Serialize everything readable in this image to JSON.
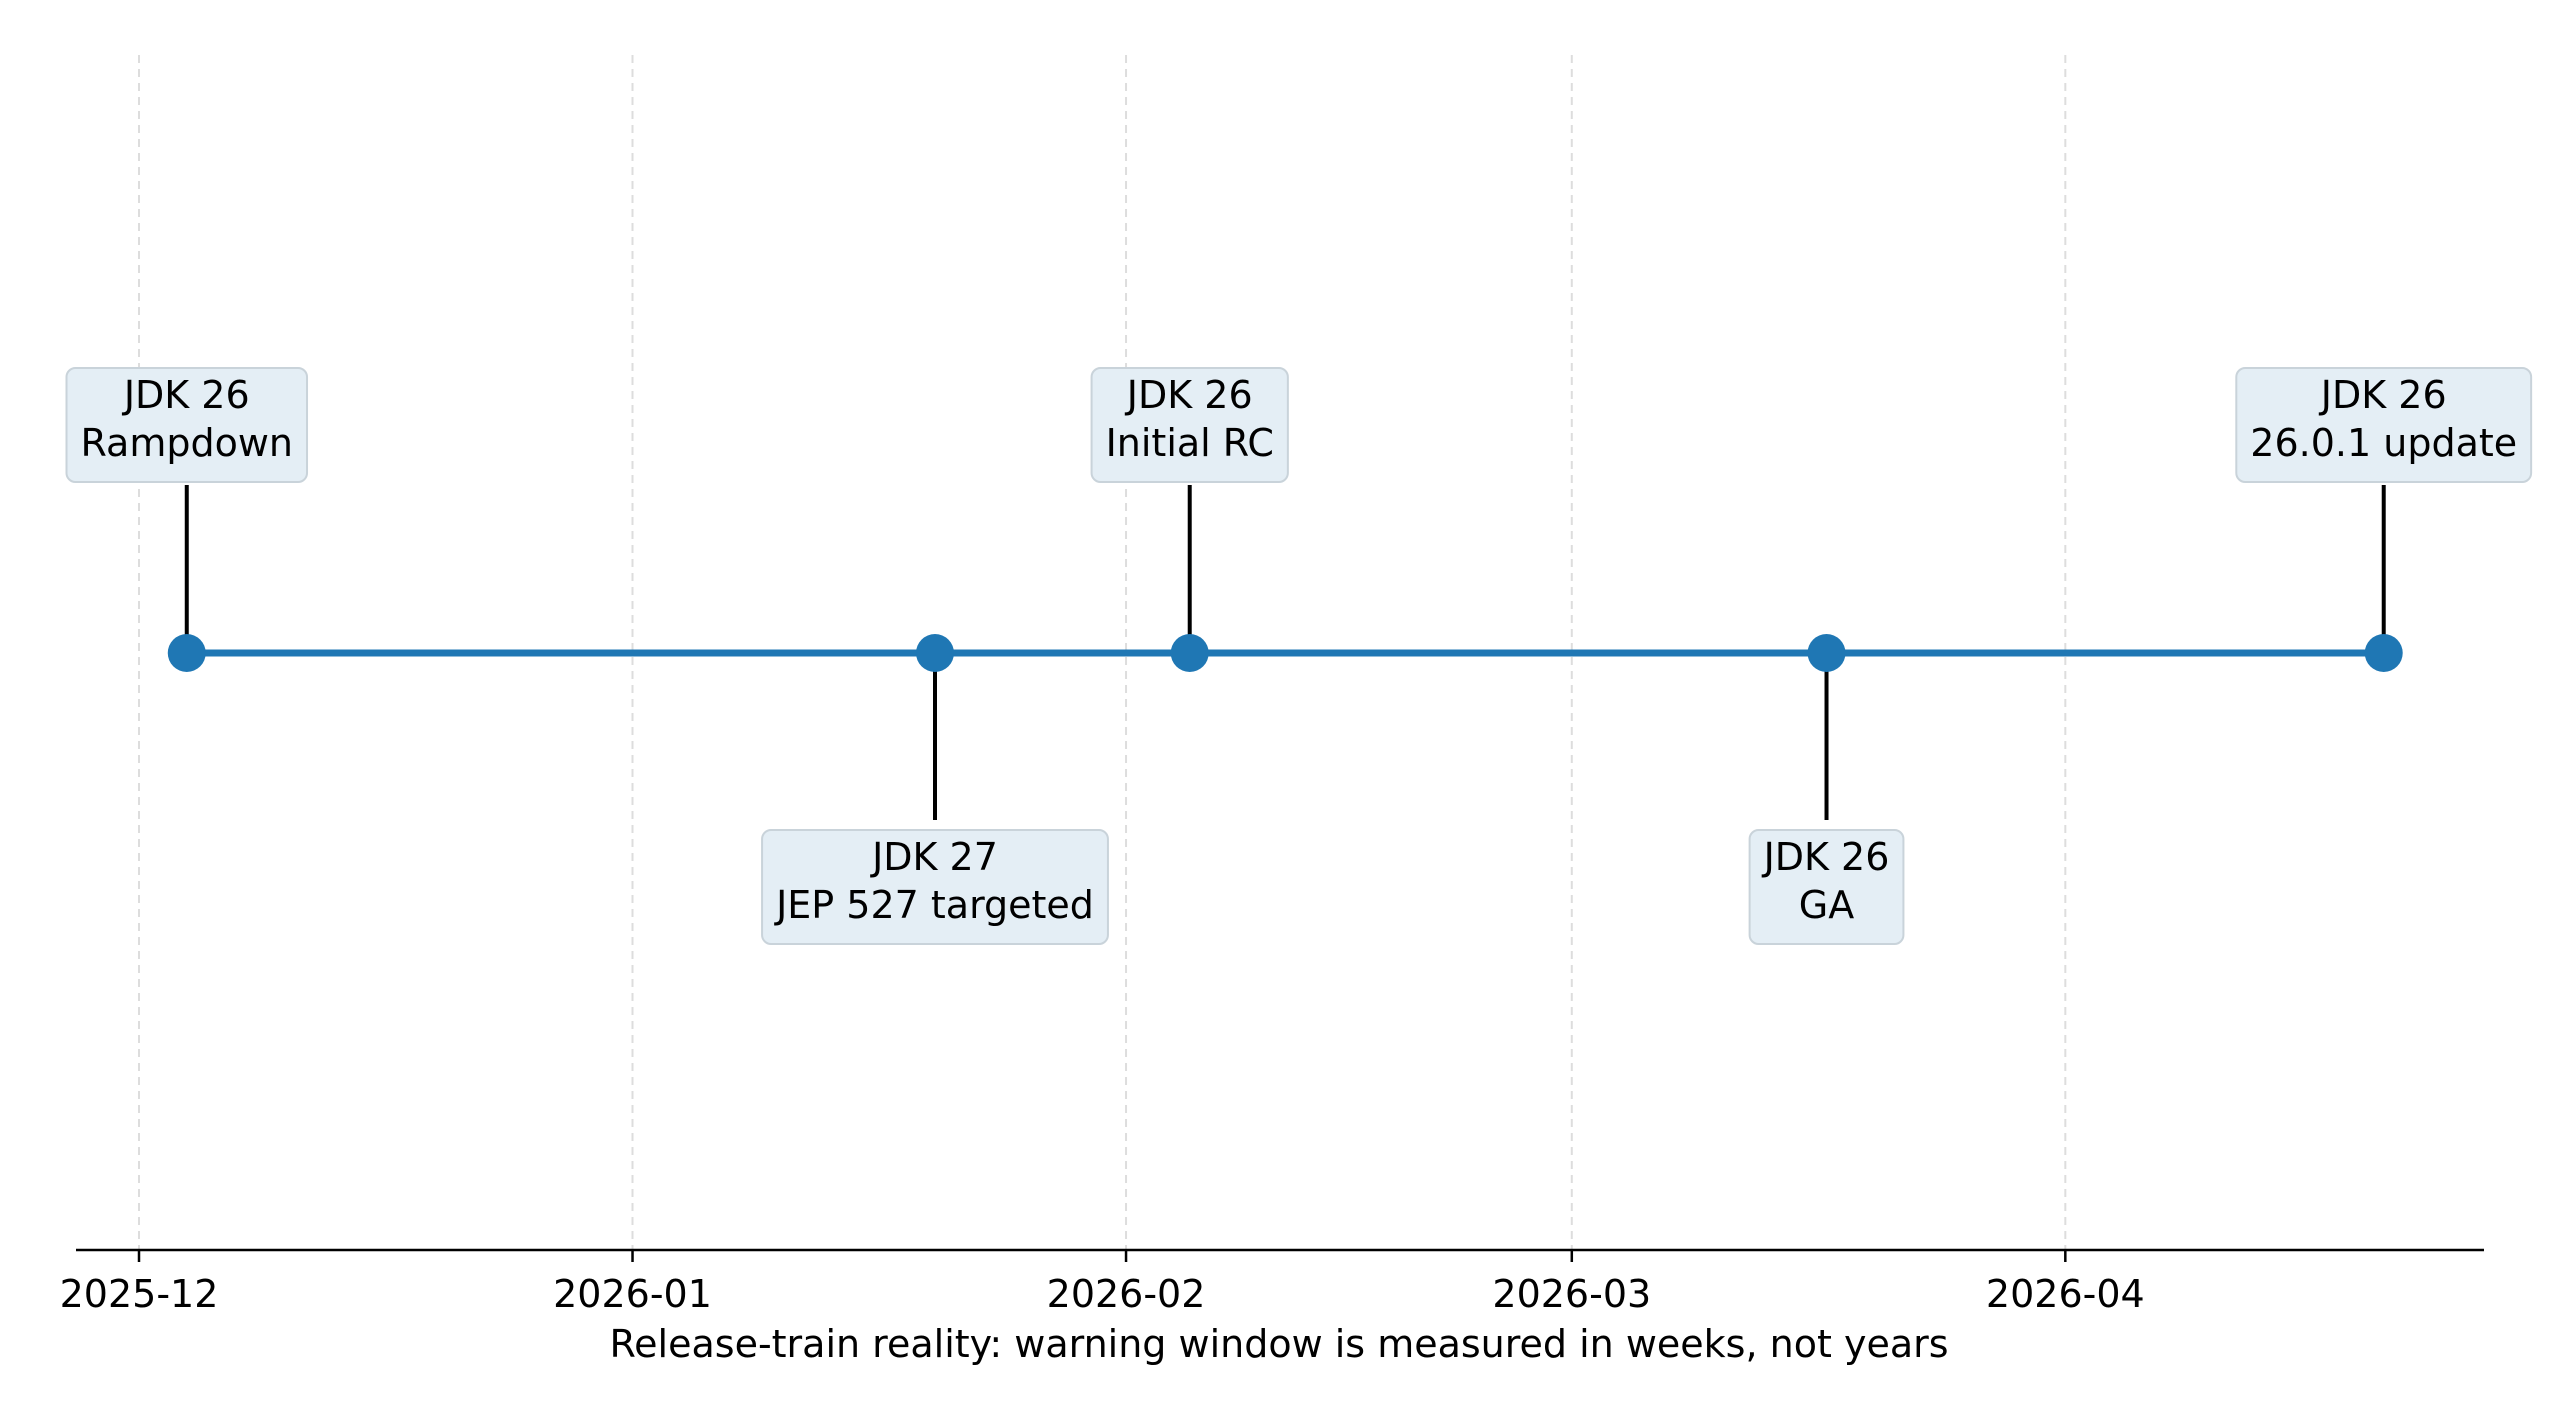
{
  "chart_data": {
    "type": "timeline",
    "xlabel": "Release-train reality: warning window is measured in weeks, not years",
    "x_ticks": [
      "2025-12",
      "2026-01",
      "2026-02",
      "2026-03",
      "2026-04"
    ],
    "x_tick_dates": [
      "2025-12-01",
      "2026-01-01",
      "2026-02-01",
      "2026-03-01",
      "2026-04-01"
    ],
    "xlim": [
      "2025-11-27",
      "2026-04-28"
    ],
    "grid": "vertical dashed",
    "colors": {
      "line": "#1f77b4",
      "marker": "#1f77b4",
      "box_fill": "#e4eef5",
      "box_edge": "#c9d3da",
      "grid": "#dddddd"
    },
    "events": [
      {
        "date": "2025-12-04",
        "line1": "JDK 26",
        "line2": "Rampdown",
        "side": "above"
      },
      {
        "date": "2026-01-20",
        "line1": "JDK 27",
        "line2": "JEP 527 targeted",
        "side": "below"
      },
      {
        "date": "2026-02-05",
        "line1": "JDK 26",
        "line2": "Initial RC",
        "side": "above"
      },
      {
        "date": "2026-03-17",
        "line1": "JDK 26",
        "line2": "GA",
        "side": "below"
      },
      {
        "date": "2026-04-21",
        "line1": "JDK 26",
        "line2": "26.0.1 update",
        "side": "above"
      }
    ]
  }
}
